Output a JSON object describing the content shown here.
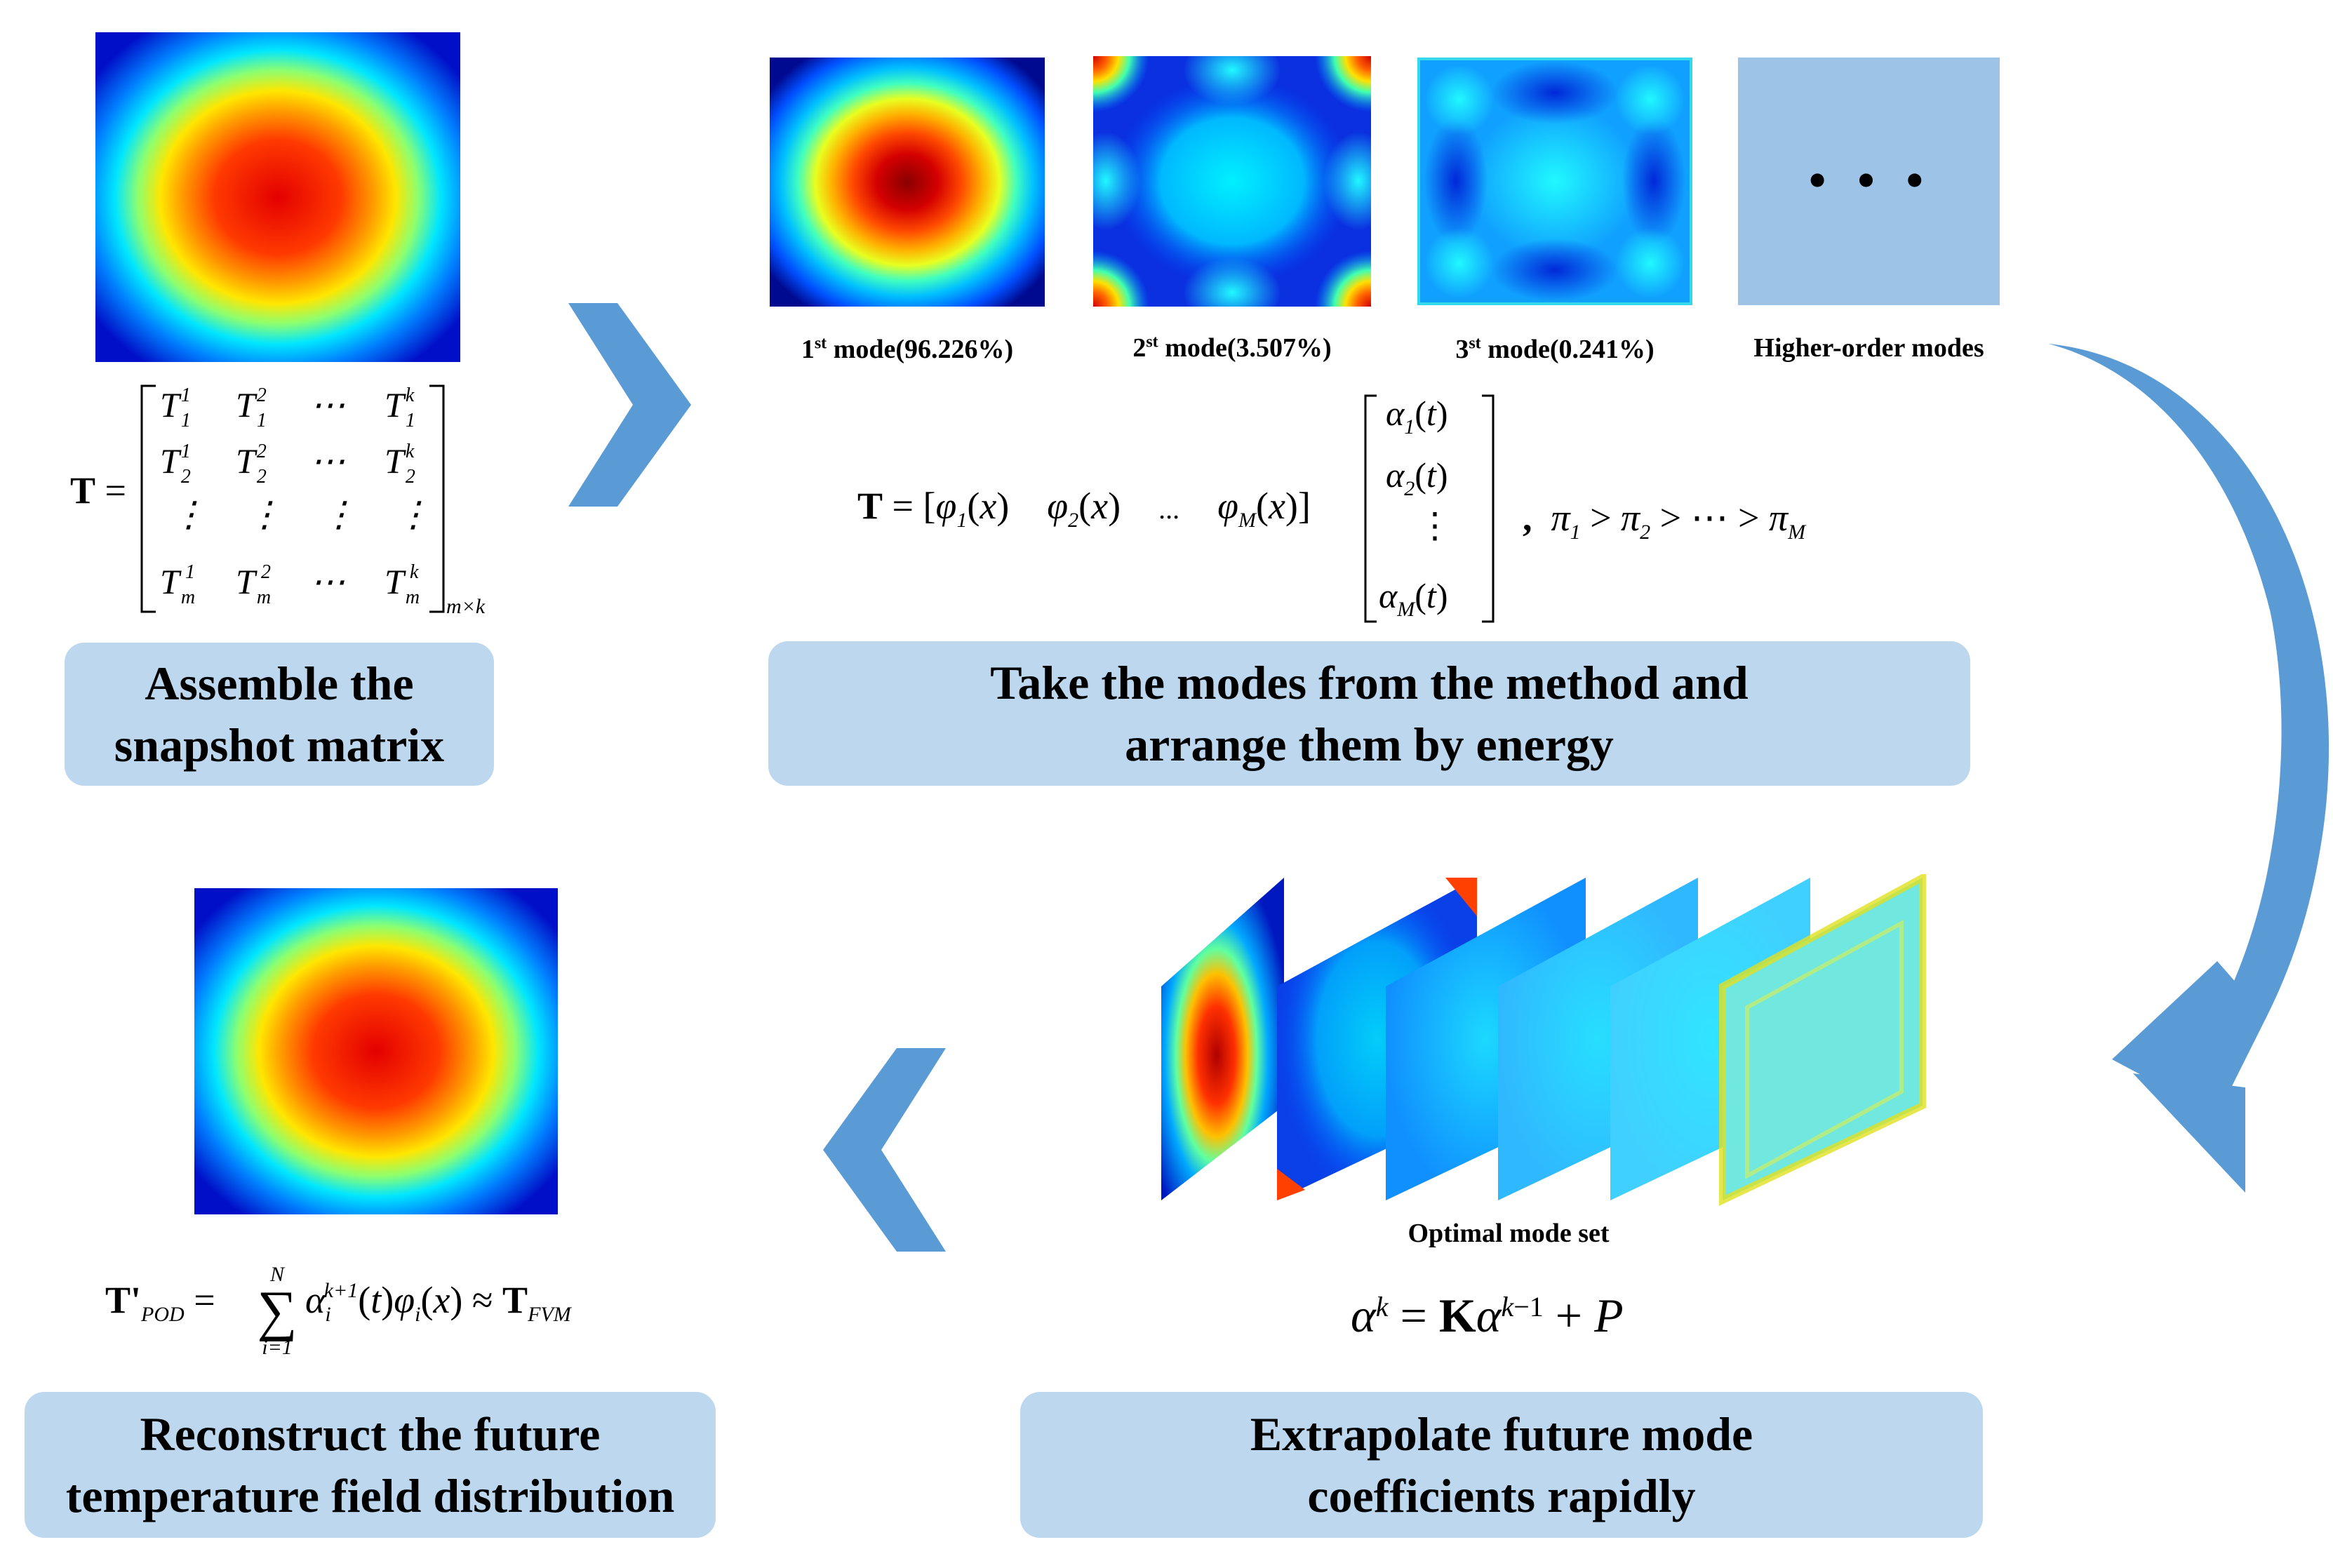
{
  "steps": {
    "assemble": {
      "line1": "Assemble the",
      "line2": "snapshot matrix"
    },
    "modes": {
      "line1": "Take the modes from the method and",
      "line2": "arrange them by energy"
    },
    "extrapolate": {
      "line1": "Extrapolate future mode",
      "line2": "coefficients rapidly"
    },
    "reconstruct": {
      "line1": "Reconstruct the future",
      "line2": "temperature field distribution"
    }
  },
  "mode_labels": [
    {
      "ord": "1",
      "sup": "st",
      "text": " mode(96.226%)"
    },
    {
      "ord": "2",
      "sup": "st",
      "text": " mode(3.507%)"
    },
    {
      "ord": "3",
      "sup": "st",
      "text": " mode(0.241%)"
    },
    {
      "ord": "",
      "sup": "",
      "text": "Higher-order modes"
    }
  ],
  "higher_order_ellipsis": "• • •",
  "optimal_mode_set_label": "Optimal mode set",
  "equations": {
    "snapshot_lhs": "T =",
    "matrix_size": "m×k",
    "modes_lhs": "T = [",
    "phi1": "φ",
    "phi_x": "(x)",
    "dots": "...",
    "ordering": "π",
    "extrap": "α",
    "reconstruct_lhs": "T'",
    "pod_sub": "POD",
    "fvm_sub": "FVM",
    "sum_top": "N",
    "sum_bottom": "i=1"
  },
  "colors": {
    "caption_bg": "#bdd7ee",
    "arrow": "#5b9bd5",
    "higher_order_bg": "#9dc3e6"
  }
}
